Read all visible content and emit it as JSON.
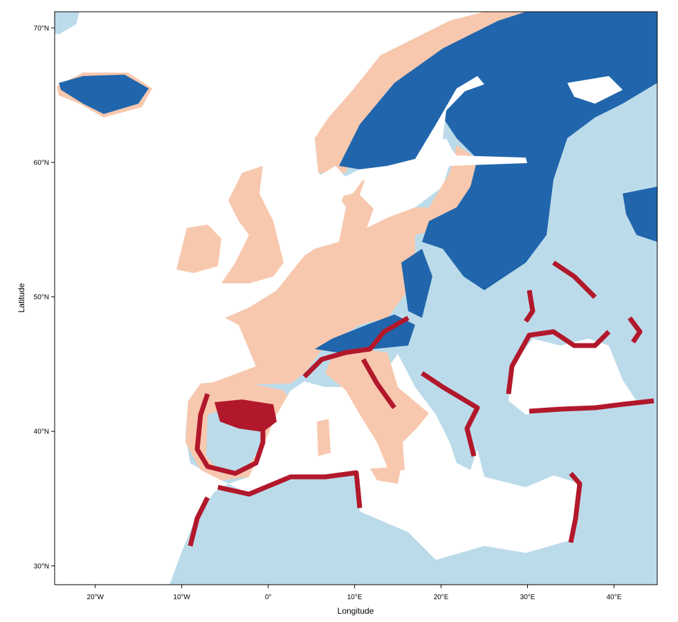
{
  "map": {
    "x_axis": {
      "title": "Longitude",
      "ticks": [
        {
          "value": -20,
          "label": "20°W"
        },
        {
          "value": -10,
          "label": "10°W"
        },
        {
          "value": 0,
          "label": "0°"
        },
        {
          "value": 10,
          "label": "10°E"
        },
        {
          "value": 20,
          "label": "20°E"
        },
        {
          "value": 30,
          "label": "30°E"
        },
        {
          "value": 40,
          "label": "40°E"
        }
      ],
      "range": [
        -24.7,
        45
      ]
    },
    "y_axis": {
      "title": "Latitude",
      "ticks": [
        {
          "value": 30,
          "label": "30°N"
        },
        {
          "value": 40,
          "label": "40°N"
        },
        {
          "value": 50,
          "label": "50°N"
        },
        {
          "value": 60,
          "label": "60°N"
        },
        {
          "value": 70,
          "label": "70°N"
        }
      ],
      "range": [
        28.6,
        71.2
      ]
    },
    "colors": {
      "sea": "#ffffff",
      "light_blue": "#bcdbea",
      "dark_blue": "#2166ac",
      "salmon": "#f8c8ae",
      "dark_red": "#b2182b"
    }
  }
}
